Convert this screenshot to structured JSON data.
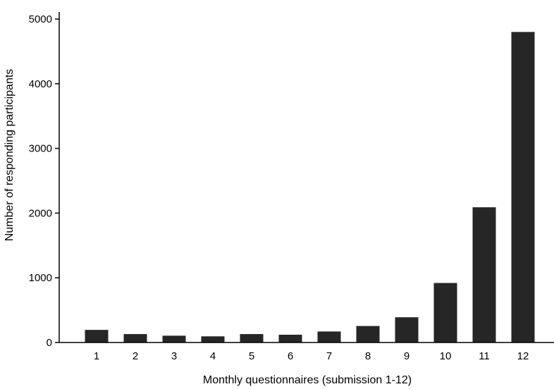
{
  "chart_data": {
    "type": "bar",
    "title": "",
    "xlabel": "Monthly questionnaires (submission 1-12)",
    "ylabel": "Number of responding participants",
    "categories": [
      "1",
      "2",
      "3",
      "4",
      "5",
      "6",
      "7",
      "8",
      "9",
      "10",
      "11",
      "12"
    ],
    "values": [
      195,
      130,
      105,
      95,
      130,
      120,
      170,
      255,
      390,
      920,
      2090,
      4800
    ],
    "ylim": [
      0,
      5000
    ],
    "yticks": [
      0,
      1000,
      2000,
      3000,
      4000,
      5000
    ],
    "grid": false,
    "legend": "none",
    "colors": {
      "bar": "#262626",
      "axis": "#000000"
    }
  }
}
